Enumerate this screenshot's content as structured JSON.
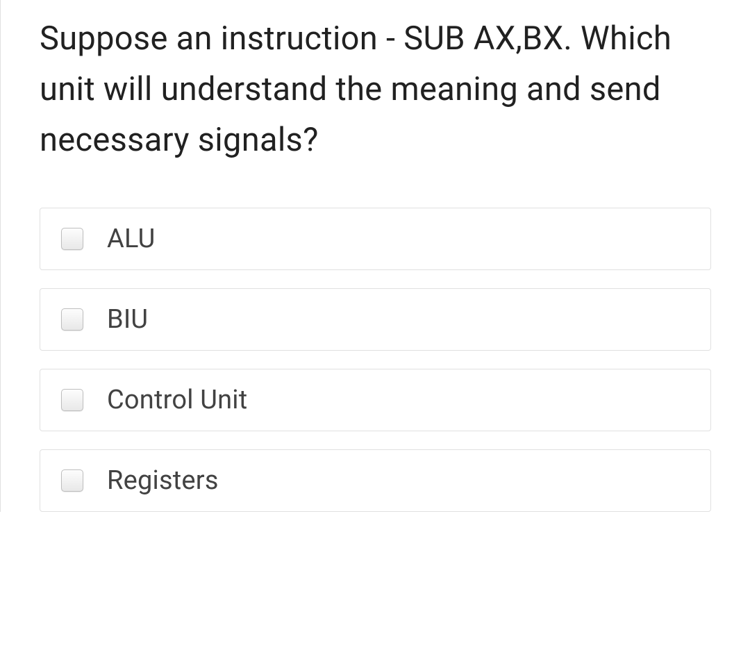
{
  "question": {
    "text": "Suppose an instruction - SUB AX,BX. Which unit will understand the meaning and send necessary signals?"
  },
  "options": [
    {
      "label": "ALU",
      "checked": false
    },
    {
      "label": "BIU",
      "checked": false
    },
    {
      "label": "Control Unit",
      "checked": false
    },
    {
      "label": "Registers",
      "checked": false
    }
  ],
  "styling": {
    "question_color": "#212121",
    "option_label_color": "#424242",
    "option_border_color": "#e0e0e0",
    "checkbox_border_color": "#bdbdbd",
    "background_color": "#ffffff",
    "question_fontsize": 47,
    "option_fontsize": 38
  }
}
